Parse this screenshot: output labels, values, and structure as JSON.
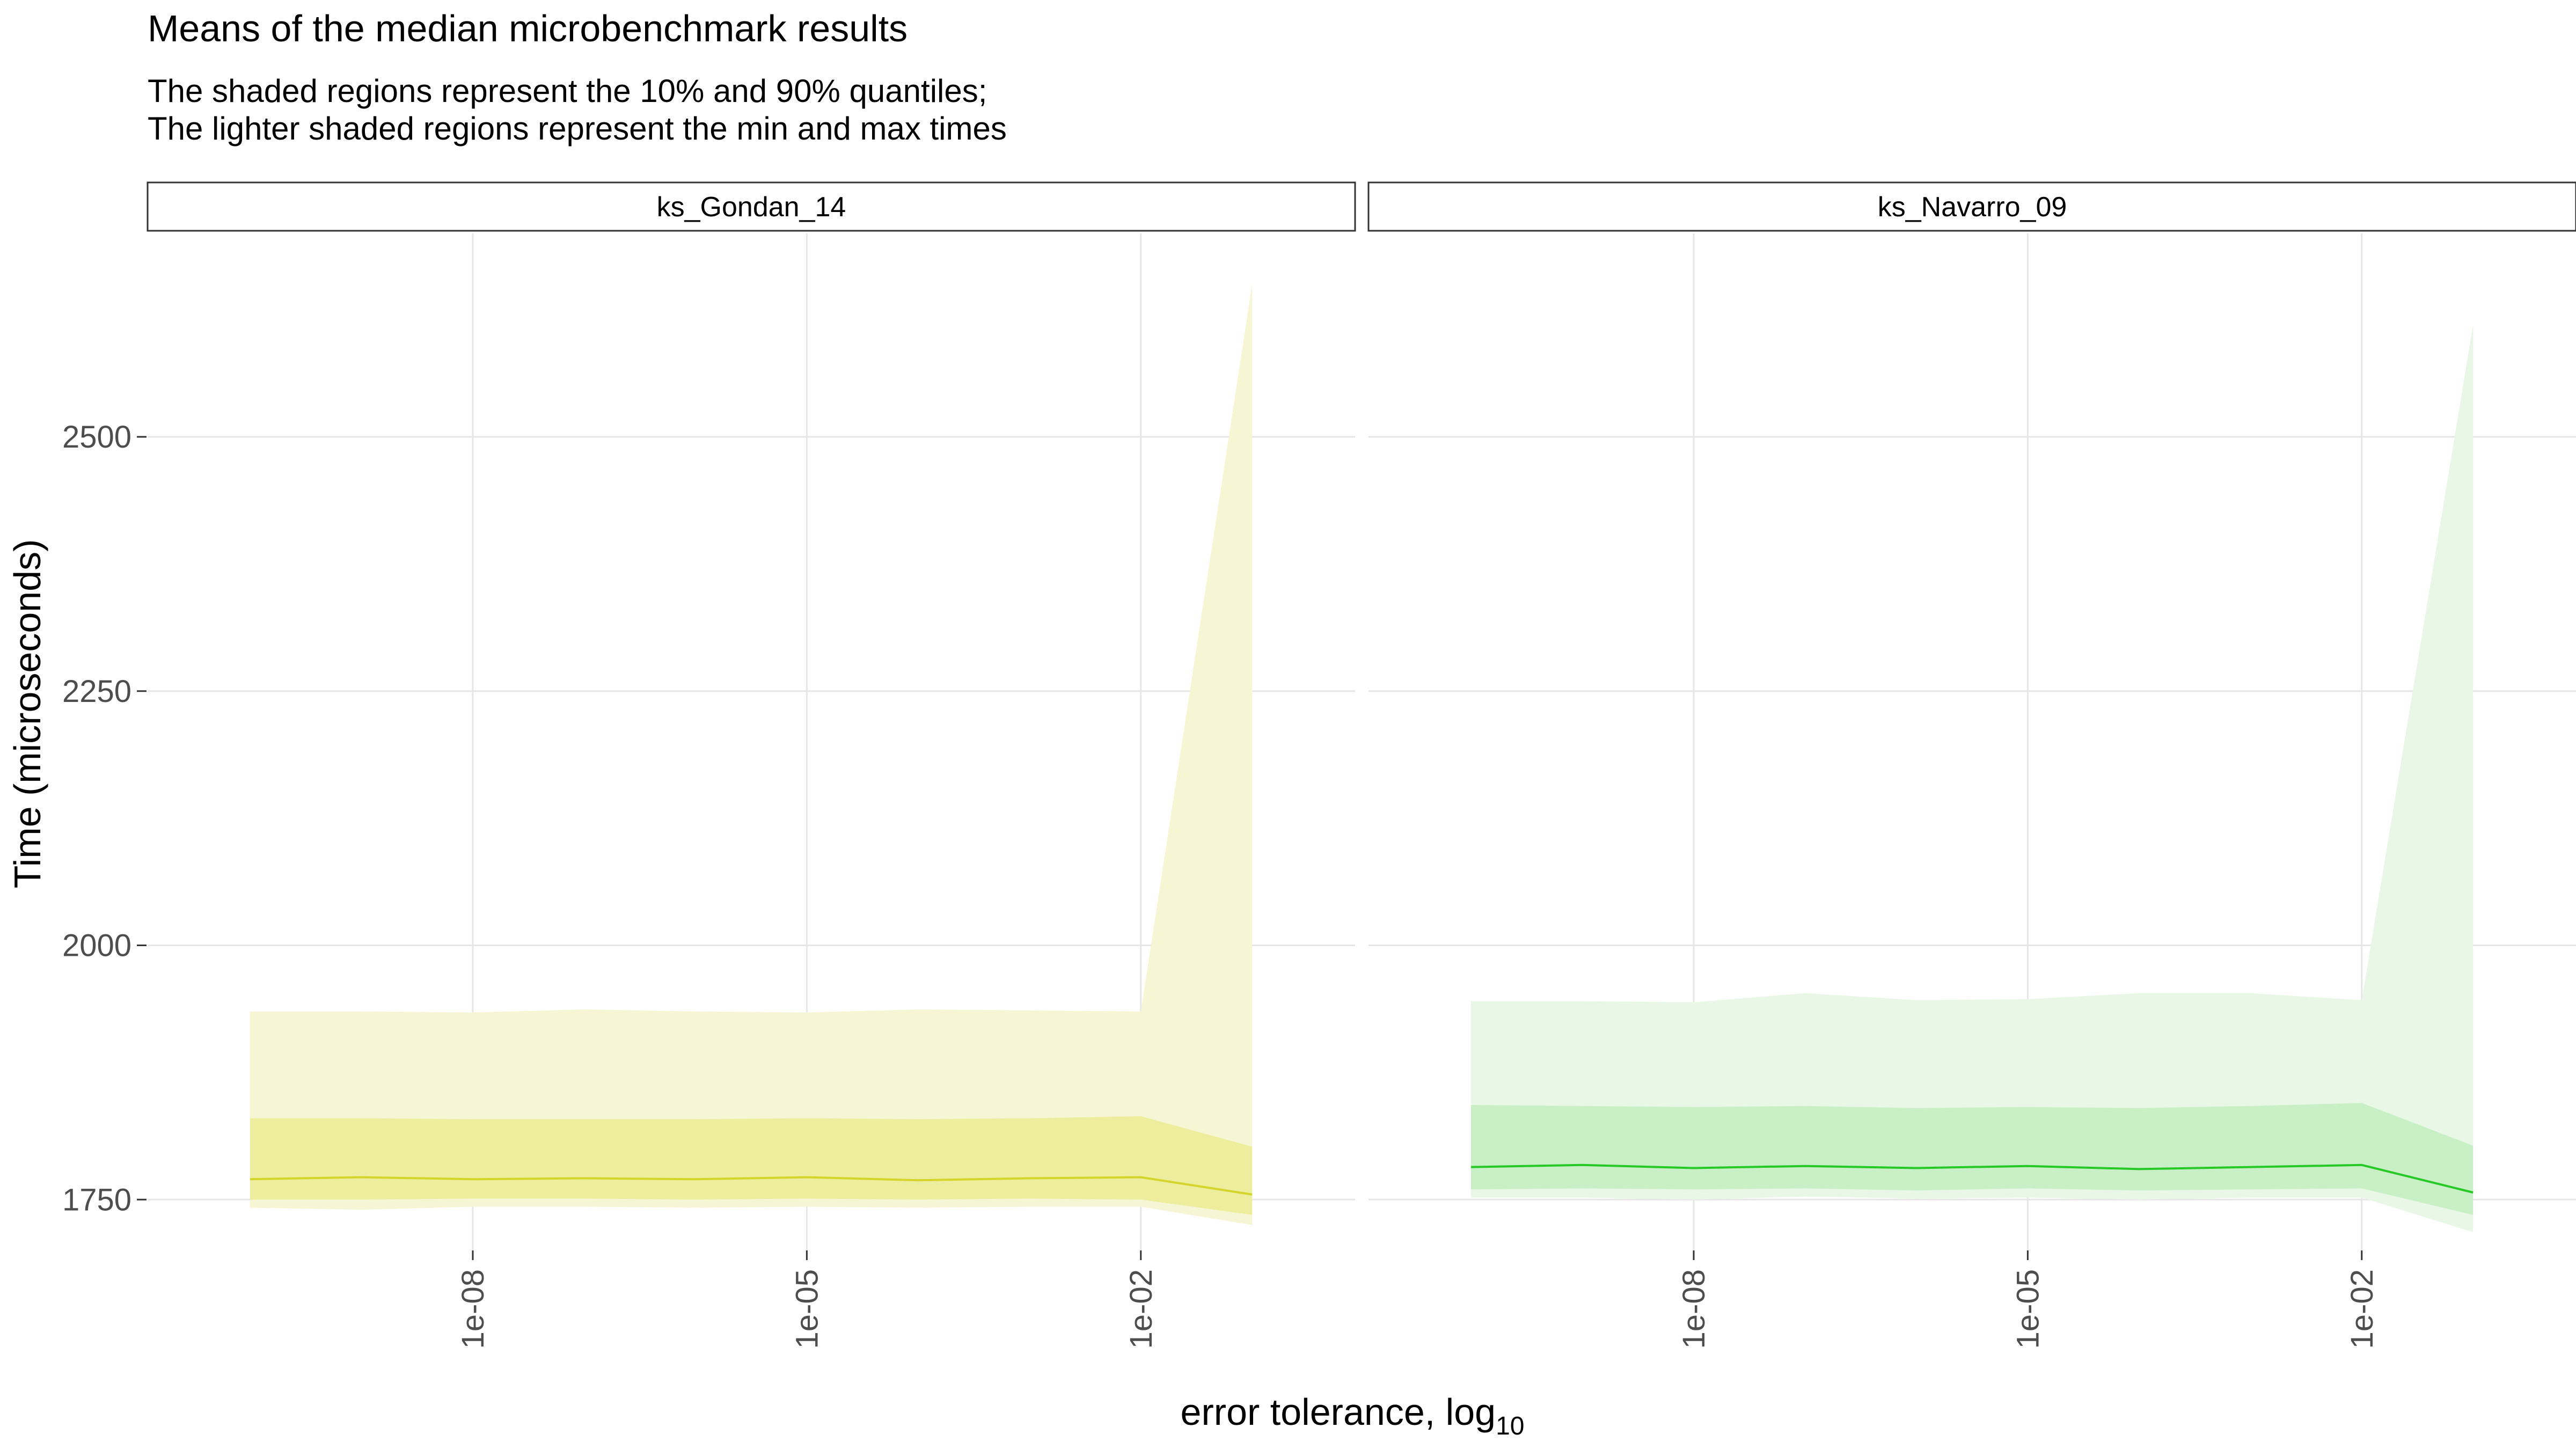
{
  "title": "Means of the median microbenchmark results",
  "subtitle_lines": [
    "The shaded regions represent the 10% and 90% quantiles;",
    "The lighter shaded regions represent the min and max times"
  ],
  "xlabel": "error tolerance,  log",
  "xlabel_subscript": "10",
  "ylabel": "Time (microseconds)",
  "chart_data": {
    "type": "line",
    "x_scale": "log10",
    "x": [
      1e-10,
      1e-09,
      1e-08,
      1e-07,
      1e-06,
      1e-05,
      0.0001,
      0.001,
      0.01,
      0.1
    ],
    "x_ticks": [
      1e-08,
      1e-05,
      0.01
    ],
    "x_tick_labels": [
      "1e-08",
      "1e-05",
      "1e-02"
    ],
    "y_ticks": [
      1750,
      2000,
      2250,
      2500
    ],
    "y_tick_labels": [
      "1750",
      "2000",
      "2250",
      "2500"
    ],
    "ylim": [
      1700,
      2700
    ],
    "xlim": [
      1.2e-11,
      0.84
    ],
    "grid": true,
    "panels": [
      {
        "name": "ks_Gondan_14",
        "color": "#d4d42a",
        "band_color": "#eded9e",
        "outer_color": "#f6f6d4",
        "mean": [
          1770,
          1772,
          1770,
          1771,
          1770,
          1772,
          1769,
          1771,
          1772,
          1755
        ],
        "q10": [
          1750,
          1750,
          1751,
          1751,
          1750,
          1751,
          1750,
          1751,
          1750,
          1735
        ],
        "q90": [
          1830,
          1830,
          1829,
          1829,
          1829,
          1830,
          1829,
          1830,
          1832,
          1802
        ],
        "min": [
          1742,
          1740,
          1743,
          1743,
          1742,
          1743,
          1742,
          1743,
          1743,
          1725
        ],
        "max": [
          1935,
          1935,
          1934,
          1937,
          1935,
          1934,
          1937,
          1936,
          1935,
          2650
        ]
      },
      {
        "name": "ks_Navarro_09",
        "color": "#27c927",
        "band_color": "#c8efc5",
        "outer_color": "#e8f7e6",
        "mean": [
          1782,
          1784,
          1781,
          1783,
          1781,
          1783,
          1780,
          1782,
          1784,
          1757
        ],
        "q10": [
          1760,
          1761,
          1760,
          1761,
          1759,
          1761,
          1759,
          1760,
          1761,
          1735
        ],
        "q90": [
          1843,
          1842,
          1841,
          1842,
          1840,
          1841,
          1840,
          1842,
          1845,
          1803
        ],
        "min": [
          1752,
          1752,
          1750,
          1753,
          1751,
          1752,
          1750,
          1752,
          1752,
          1718
        ],
        "max": [
          1945,
          1945,
          1944,
          1953,
          1946,
          1947,
          1953,
          1953,
          1946,
          2610
        ]
      }
    ]
  }
}
